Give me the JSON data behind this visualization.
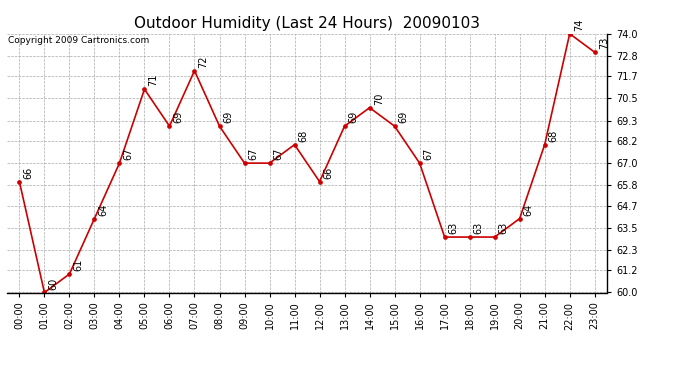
{
  "title": "Outdoor Humidity (Last 24 Hours)  20090103",
  "copyright": "Copyright 2009 Cartronics.com",
  "hours": [
    "00:00",
    "01:00",
    "02:00",
    "03:00",
    "04:00",
    "05:00",
    "06:00",
    "07:00",
    "08:00",
    "09:00",
    "10:00",
    "11:00",
    "12:00",
    "13:00",
    "14:00",
    "15:00",
    "16:00",
    "17:00",
    "18:00",
    "19:00",
    "20:00",
    "21:00",
    "22:00",
    "23:00"
  ],
  "values": [
    66,
    60,
    61,
    64,
    67,
    71,
    69,
    72,
    69,
    67,
    67,
    68,
    66,
    69,
    70,
    69,
    67,
    63,
    63,
    63,
    64,
    68,
    74,
    73
  ],
  "ylim": [
    60.0,
    74.0
  ],
  "yticks": [
    60.0,
    61.2,
    62.3,
    63.5,
    64.7,
    65.8,
    67.0,
    68.2,
    69.3,
    70.5,
    71.7,
    72.8,
    74.0
  ],
  "line_color": "#cc0000",
  "marker_color": "#cc0000",
  "bg_color": "#ffffff",
  "grid_color": "#aaaaaa",
  "title_fontsize": 11,
  "copyright_fontsize": 6.5,
  "label_fontsize": 7,
  "tick_fontsize": 7
}
